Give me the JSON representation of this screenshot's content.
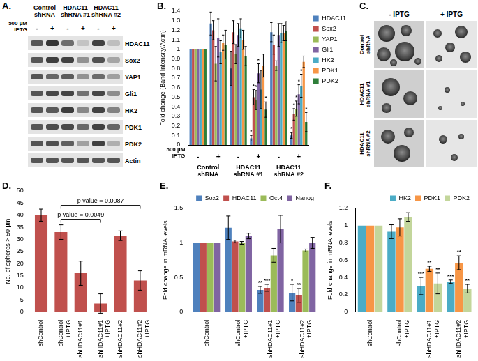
{
  "blot": {
    "label": "A.",
    "treatment": "500 µM IPTG",
    "groups": [
      "Control shRNA",
      "HDAC11 shRNA #1",
      "HDAC11 shRNA #2"
    ],
    "lanes": [
      "-",
      "+",
      "-",
      "+",
      "-",
      "+"
    ],
    "proteins": [
      "HDAC11",
      "Sox2",
      "YAP1",
      "Gli1",
      "HK2",
      "PDK1",
      "PDK2",
      "Actin"
    ]
  },
  "sphere_images": {
    "label": "C.",
    "columns": [
      "- IPTG",
      "+ IPTG"
    ],
    "rows": [
      "Control shRNA",
      "HDAC11 shRNA #1",
      "HDAC11 shRNA #2"
    ]
  },
  "chart_data": [
    {
      "label": "B.",
      "type": "bar",
      "categories": [
        "-",
        "+",
        "-",
        "+",
        "-",
        "+"
      ],
      "groups": [
        "Control shRNA",
        "HDAC11 shRNA #1",
        "HDAC11 shRNA #2"
      ],
      "x_row_label": "500 µM IPTG",
      "y_label": "Fold change (Band Intensity/Actin)",
      "ylim": [
        0,
        1.4
      ],
      "yticks": [
        0,
        0.1,
        0.2,
        0.3,
        0.4,
        0.5,
        0.6,
        0.7,
        0.8,
        0.9,
        1,
        1.1,
        1.2,
        1.3,
        1.4
      ],
      "grid": false,
      "legend": "right",
      "series": [
        {
          "name": "HDAC11",
          "color": "#4f81bd",
          "values": [
            1,
            1.27,
            0.8,
            0.07,
            1.18,
            0.1
          ],
          "errors": [
            0,
            0.12,
            0.18,
            0.03,
            0.1,
            0.03
          ],
          "significance": [
            null,
            null,
            null,
            "*",
            null,
            "*"
          ]
        },
        {
          "name": "Sox2",
          "color": "#c0504d",
          "values": [
            1,
            1.2,
            1.18,
            0.5,
            1.05,
            0.32
          ],
          "errors": [
            0,
            0.1,
            0.12,
            0.08,
            0.1,
            0.06
          ],
          "significance": [
            null,
            null,
            null,
            "*",
            null,
            "*"
          ]
        },
        {
          "name": "YAP1",
          "color": "#9bbb59",
          "values": [
            1,
            0.85,
            0.95,
            0.47,
            0.83,
            0.38
          ],
          "errors": [
            0,
            0.18,
            0.1,
            0.1,
            0.05,
            0.08
          ],
          "significance": [
            null,
            null,
            null,
            "*",
            null,
            "*"
          ]
        },
        {
          "name": "Gli1",
          "color": "#8064a2",
          "values": [
            1,
            1.12,
            1.15,
            0.75,
            1.15,
            0.53
          ],
          "errors": [
            0,
            0.2,
            0.12,
            0.1,
            0.12,
            0.1
          ],
          "significance": [
            null,
            null,
            null,
            "*",
            null,
            "*"
          ]
        },
        {
          "name": "HK2",
          "color": "#4bacc6",
          "values": [
            1,
            0.97,
            1.22,
            0.58,
            1.17,
            0.62
          ],
          "errors": [
            0,
            0.12,
            0.1,
            0.2,
            0.1,
            0.12
          ],
          "significance": [
            null,
            null,
            null,
            null,
            null,
            "*"
          ]
        },
        {
          "name": "PDK1",
          "color": "#f79646",
          "values": [
            1,
            1.07,
            1.1,
            0.83,
            1.17,
            0.87
          ],
          "errors": [
            0,
            0.08,
            0.1,
            0.12,
            0.08,
            0.06
          ],
          "significance": [
            null,
            null,
            null,
            null,
            null,
            null
          ]
        },
        {
          "name": "PDK2",
          "color": "#2f7f3a",
          "values": [
            1,
            1.05,
            0.93,
            0.37,
            1.19,
            0.24
          ],
          "errors": [
            0,
            0.15,
            0.1,
            0.08,
            0.1,
            0.1
          ],
          "significance": [
            null,
            null,
            null,
            "*",
            null,
            "*"
          ]
        }
      ]
    },
    {
      "label": "D.",
      "type": "bar",
      "categories": [
        "shControl",
        [
          "shControl",
          "+IPTG"
        ],
        "shHDAC11#1",
        [
          "shHDAC11#1",
          "+IPTG"
        ],
        "shHDAC11#2",
        [
          "shHDAC11#2",
          "+IPTG"
        ]
      ],
      "values": [
        40,
        33,
        16,
        3.5,
        31.5,
        13
      ],
      "errors": [
        2.5,
        3,
        5,
        4,
        2,
        4
      ],
      "color": "#c0504d",
      "y_label": "No. of spheres > 50 µm",
      "ylim": [
        0,
        50
      ],
      "yticks": [
        0,
        5,
        10,
        15,
        20,
        25,
        30,
        35,
        40,
        45,
        50
      ],
      "grid": false,
      "comparisons": [
        {
          "between": [
            [
              "shControl",
              "+IPTG"
            ],
            [
              "shHDAC11#1",
              "+IPTG"
            ]
          ],
          "text": "p value = 0.0049"
        },
        {
          "between": [
            [
              "shControl",
              "+IPTG"
            ],
            [
              "shHDAC11#2",
              "+IPTG"
            ]
          ],
          "text": "p value = 0.0087"
        }
      ]
    },
    {
      "label": "E.",
      "type": "bar",
      "categories": [
        "shControl",
        [
          "shControl",
          "+IPTG"
        ],
        [
          "shHDAC11#1",
          "+IPTG"
        ],
        [
          "shHDAC11#2",
          "+IPTG"
        ]
      ],
      "y_label": "Fold change in mRNA levels",
      "ylim": [
        0,
        1.5
      ],
      "yticks": [
        0,
        0.5,
        1,
        1.5
      ],
      "grid": false,
      "legend": "top right",
      "series": [
        {
          "name": "Sox2",
          "color": "#4f81bd",
          "values": [
            1,
            1.22,
            0.32,
            0.28
          ],
          "errors": [
            0,
            0.17,
            0.05,
            0.12
          ],
          "significance": [
            null,
            null,
            "**",
            "*"
          ]
        },
        {
          "name": "HDAC11",
          "color": "#c0504d",
          "values": [
            1,
            1.02,
            0.35,
            0.24
          ],
          "errors": [
            0,
            0.02,
            0.05,
            0.1
          ],
          "significance": [
            null,
            null,
            "***",
            "**"
          ]
        },
        {
          "name": "Oct4",
          "color": "#9bbb59",
          "values": [
            1,
            1,
            0.82,
            0.89
          ],
          "errors": [
            0,
            0.02,
            0.1,
            0.02
          ],
          "significance": [
            null,
            null,
            null,
            null
          ]
        },
        {
          "name": "Nanog",
          "color": "#8064a2",
          "values": [
            1,
            1.1,
            1.2,
            1
          ],
          "errors": [
            0,
            0.04,
            0.2,
            0.08
          ],
          "significance": [
            null,
            null,
            null,
            null
          ]
        }
      ]
    },
    {
      "label": "F.",
      "type": "bar",
      "categories": [
        "shControl",
        [
          "shControl",
          "+IPTG"
        ],
        [
          "shHDAC11#1",
          "+IPTG"
        ],
        [
          "shHDAC11#2",
          "+IPTG"
        ]
      ],
      "y_label": "Fold change in mRNA levels",
      "ylim": [
        0,
        1.2
      ],
      "yticks": [
        0,
        0.2,
        0.4,
        0.6,
        0.8,
        1,
        1.2
      ],
      "grid": false,
      "legend": "top right",
      "series": [
        {
          "name": "HK2",
          "color": "#4bacc6",
          "values": [
            1,
            0.93,
            0.3,
            0.35
          ],
          "errors": [
            0,
            0.08,
            0.1,
            0.02
          ],
          "significance": [
            null,
            null,
            "***",
            "***"
          ]
        },
        {
          "name": "PDK1",
          "color": "#f79646",
          "values": [
            1,
            0.98,
            0.5,
            0.57
          ],
          "errors": [
            0,
            0.1,
            0.03,
            0.08
          ],
          "significance": [
            null,
            null,
            "**",
            "**"
          ]
        },
        {
          "name": "PDK2",
          "color": "#c3d69b",
          "values": [
            1,
            1.1,
            0.33,
            0.27
          ],
          "errors": [
            0,
            0.05,
            0.12,
            0.05
          ],
          "significance": [
            null,
            null,
            "**",
            "**"
          ]
        }
      ]
    }
  ]
}
